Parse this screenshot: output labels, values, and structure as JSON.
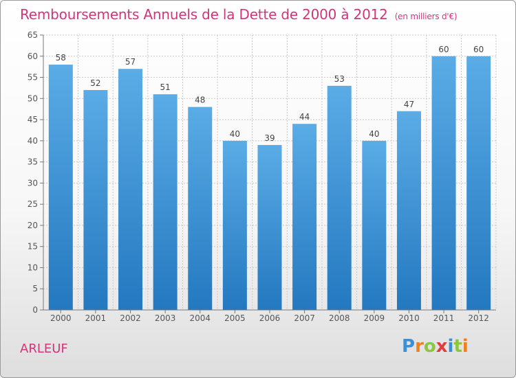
{
  "title": "Remboursements Annuels de la Dette de 2000 à 2012",
  "title_unit": "(en milliers d'€)",
  "location": "ARLEUF",
  "logo": {
    "text": "Proxiti",
    "letters": [
      {
        "ch": "P",
        "color": "#3a8fd6"
      },
      {
        "ch": "r",
        "color": "#f07f1c"
      },
      {
        "ch": "o",
        "color": "#8cc63f"
      },
      {
        "ch": "x",
        "color": "#e23c3c"
      },
      {
        "ch": "i",
        "color": "#3a8fd6"
      },
      {
        "ch": "t",
        "color": "#8cc63f"
      },
      {
        "ch": "i",
        "color": "#f07f1c"
      }
    ]
  },
  "colors": {
    "bar_top": "#5aace6",
    "bar_bottom": "#2478bf",
    "title": "#d0357a",
    "grid": "#c8c8c8",
    "axis": "#777777"
  },
  "chart_data": {
    "type": "bar",
    "categories": [
      "2000",
      "2001",
      "2002",
      "2003",
      "2004",
      "2005",
      "2006",
      "2007",
      "2008",
      "2009",
      "2010",
      "2011",
      "2012"
    ],
    "values": [
      58,
      52,
      57,
      51,
      48,
      40,
      39,
      44,
      53,
      40,
      47,
      60,
      60
    ],
    "ylim": [
      0,
      65
    ],
    "yticks": [
      0,
      5,
      10,
      15,
      20,
      25,
      30,
      35,
      40,
      45,
      50,
      55,
      60,
      65
    ],
    "grid": true
  }
}
